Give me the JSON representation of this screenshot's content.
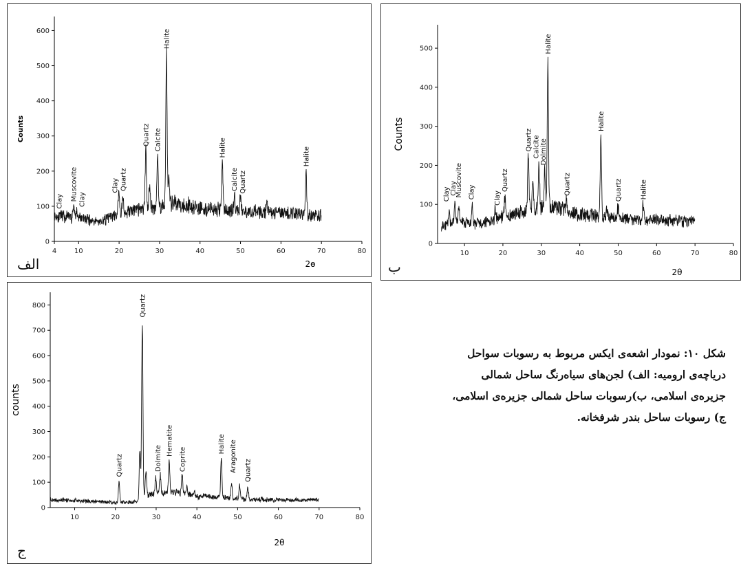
{
  "caption": {
    "lines": [
      "شکل ۱۰: نمودار اشعه‌ی ایکس مربوط به رسوبات سواحل",
      "دریاچه‌ی ارومیه: الف) لجن‌های سیاه‌رنگ ساحل شمالی",
      "جزیره‌ی اسلامی، ب)رسوبات ساحل شمالی جزیره‌ی اسلامی،",
      "ج) رسوبات ساحل بندر شرفخانه."
    ]
  },
  "chart_data": [
    {
      "type": "line",
      "panel_label": "الف",
      "xlabel": "2ɵ",
      "ylabel": "Counts",
      "xlim": [
        4,
        80
      ],
      "ylim": [
        0,
        640
      ],
      "x_ticks": [
        4,
        10,
        20,
        30,
        40,
        50,
        60,
        70,
        80
      ],
      "y_ticks": [
        0,
        100,
        200,
        300,
        400,
        500,
        600
      ],
      "grid": false,
      "baseline": [
        [
          4,
          72
        ],
        [
          10,
          68
        ],
        [
          15,
          55
        ],
        [
          18,
          70
        ],
        [
          22,
          85
        ],
        [
          25,
          90
        ],
        [
          30,
          100
        ],
        [
          35,
          108
        ],
        [
          40,
          95
        ],
        [
          45,
          90
        ],
        [
          50,
          85
        ],
        [
          55,
          85
        ],
        [
          60,
          80
        ],
        [
          65,
          78
        ],
        [
          70,
          72
        ]
      ],
      "peaks": [
        [
          8.8,
          105
        ],
        [
          9.5,
          85
        ],
        [
          19.9,
          135
        ],
        [
          20.9,
          130
        ],
        [
          26.6,
          260
        ],
        [
          27.5,
          160
        ],
        [
          29.5,
          245
        ],
        [
          31.7,
          530
        ],
        [
          32.3,
          180
        ],
        [
          45.5,
          228
        ],
        [
          48.5,
          135
        ],
        [
          50.0,
          125
        ],
        [
          56.5,
          115
        ],
        [
          66.2,
          200
        ]
      ],
      "annotations": [
        {
          "text": "Clay",
          "x": 5.2,
          "y": 85
        },
        {
          "text": "Muscovite",
          "x": 8.8,
          "y": 105
        },
        {
          "text": "Clay",
          "x": 10.8,
          "y": 90
        },
        {
          "text": "Clay",
          "x": 19.0,
          "y": 130
        },
        {
          "text": "Quartz",
          "x": 21.0,
          "y": 135
        },
        {
          "text": "Quartz",
          "x": 26.6,
          "y": 262
        },
        {
          "text": "Calcite",
          "x": 29.5,
          "y": 248
        },
        {
          "text": "Halite",
          "x": 31.7,
          "y": 540
        },
        {
          "text": "Halite",
          "x": 45.5,
          "y": 230
        },
        {
          "text": "Calcite",
          "x": 48.5,
          "y": 135
        },
        {
          "text": "Quartz",
          "x": 50.5,
          "y": 128
        },
        {
          "text": "Halite",
          "x": 66.2,
          "y": 205
        }
      ]
    },
    {
      "type": "line",
      "panel_label": "ب",
      "xlabel": "2θ",
      "ylabel": "Counts",
      "xlim": [
        3,
        80
      ],
      "ylim": [
        0,
        560
      ],
      "x_ticks": [
        10,
        20,
        30,
        40,
        50,
        60,
        70,
        80
      ],
      "y_ticks": [
        0,
        100,
        200,
        300,
        400,
        500
      ],
      "grid": false,
      "baseline": [
        [
          4,
          45
        ],
        [
          8,
          55
        ],
        [
          12,
          50
        ],
        [
          16,
          55
        ],
        [
          20,
          68
        ],
        [
          25,
          80
        ],
        [
          30,
          95
        ],
        [
          35,
          90
        ],
        [
          40,
          75
        ],
        [
          45,
          70
        ],
        [
          50,
          65
        ],
        [
          55,
          62
        ],
        [
          60,
          60
        ],
        [
          65,
          58
        ],
        [
          70,
          55
        ]
      ],
      "peaks": [
        [
          6.0,
          80
        ],
        [
          7.5,
          110
        ],
        [
          8.5,
          95
        ],
        [
          12.0,
          100
        ],
        [
          18.0,
          85
        ],
        [
          20.5,
          120
        ],
        [
          26.6,
          225
        ],
        [
          27.8,
          160
        ],
        [
          29.4,
          205
        ],
        [
          30.9,
          190
        ],
        [
          31.7,
          470
        ],
        [
          36.5,
          110
        ],
        [
          45.5,
          275
        ],
        [
          47.0,
          90
        ],
        [
          50.0,
          95
        ],
        [
          56.5,
          100
        ]
      ],
      "annotations": [
        {
          "text": "Clay",
          "x": 5.2,
          "y": 100
        },
        {
          "text": "Clay",
          "x": 7.0,
          "y": 115
        },
        {
          "text": "Muscovite",
          "x": 8.5,
          "y": 110
        },
        {
          "text": "Clay",
          "x": 11.8,
          "y": 105
        },
        {
          "text": "Clay",
          "x": 18.5,
          "y": 90
        },
        {
          "text": "Quartz",
          "x": 20.5,
          "y": 125
        },
        {
          "text": "Quartz",
          "x": 26.6,
          "y": 228
        },
        {
          "text": "Calcite",
          "x": 28.6,
          "y": 210
        },
        {
          "text": "Dolmite",
          "x": 30.5,
          "y": 193
        },
        {
          "text": "Halite",
          "x": 31.7,
          "y": 478
        },
        {
          "text": "Quartz",
          "x": 36.7,
          "y": 115
        },
        {
          "text": "Halite",
          "x": 45.5,
          "y": 280
        },
        {
          "text": "Quartz",
          "x": 50.0,
          "y": 100
        },
        {
          "text": "Halite",
          "x": 56.5,
          "y": 105
        }
      ]
    },
    {
      "type": "line",
      "panel_label": "ج",
      "xlabel": "2θ",
      "ylabel": "counts",
      "xlim": [
        4,
        80
      ],
      "ylim": [
        0,
        850
      ],
      "x_ticks": [
        10,
        20,
        30,
        40,
        50,
        60,
        70,
        80
      ],
      "y_ticks": [
        0,
        100,
        200,
        300,
        400,
        500,
        600,
        700,
        800
      ],
      "grid": false,
      "baseline": [
        [
          4,
          30
        ],
        [
          10,
          28
        ],
        [
          15,
          24
        ],
        [
          20,
          20
        ],
        [
          24,
          20
        ],
        [
          25.5,
          25
        ],
        [
          28,
          50
        ],
        [
          30,
          60
        ],
        [
          35,
          60
        ],
        [
          40,
          45
        ],
        [
          45,
          40
        ],
        [
          50,
          35
        ],
        [
          55,
          32
        ],
        [
          60,
          30
        ],
        [
          65,
          30
        ],
        [
          70,
          30
        ]
      ],
      "peaks": [
        [
          20.9,
          105
        ],
        [
          26.0,
          225
        ],
        [
          26.6,
          730
        ],
        [
          27.5,
          150
        ],
        [
          29.9,
          120
        ],
        [
          31.0,
          130
        ],
        [
          33.2,
          185
        ],
        [
          36.4,
          125
        ],
        [
          37.5,
          80
        ],
        [
          39.4,
          70
        ],
        [
          46.0,
          195
        ],
        [
          48.5,
          100
        ],
        [
          50.5,
          90
        ],
        [
          52.5,
          80
        ]
      ],
      "annotations": [
        {
          "text": "Quartz",
          "x": 20.9,
          "y": 110
        },
        {
          "text": "Quartz",
          "x": 26.6,
          "y": 740
        },
        {
          "text": "Dolmite",
          "x": 30.4,
          "y": 130
        },
        {
          "text": "Hematite",
          "x": 33.2,
          "y": 190
        },
        {
          "text": "Coprite",
          "x": 36.4,
          "y": 130
        },
        {
          "text": "Halite",
          "x": 46.0,
          "y": 200
        },
        {
          "text": "Aragonite",
          "x": 48.8,
          "y": 125
        },
        {
          "text": "Quartz",
          "x": 52.5,
          "y": 90
        }
      ]
    }
  ]
}
